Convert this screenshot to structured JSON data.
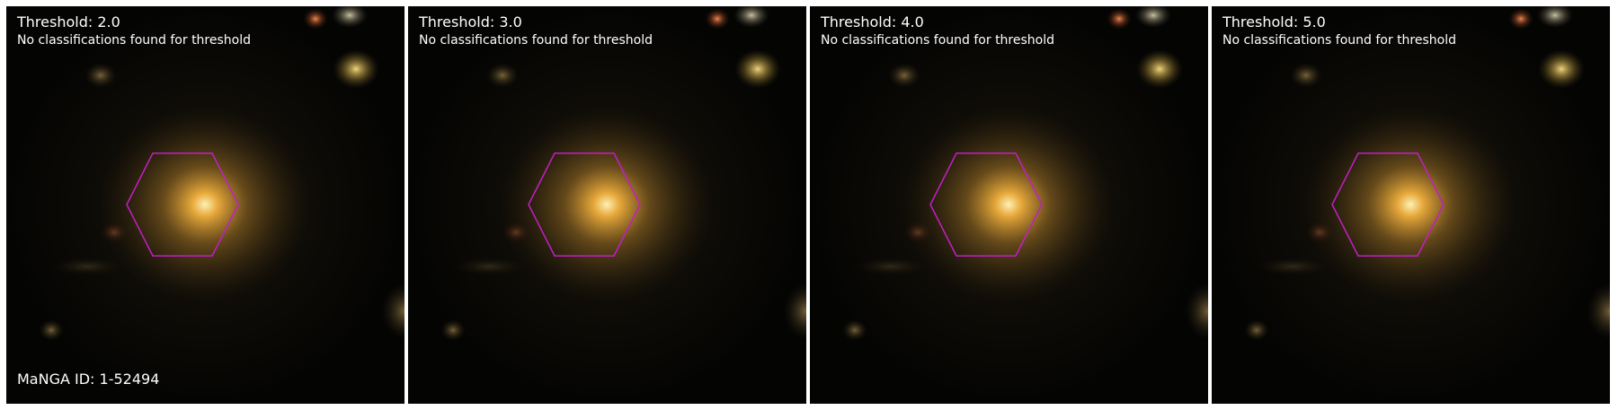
{
  "figure": {
    "manga_id_label": "MaNGA ID: 1-52494",
    "hexagon_color": "#c21fc6",
    "panels": [
      {
        "threshold_label": "Threshold: 2.0",
        "status": "No classifications found for threshold"
      },
      {
        "threshold_label": "Threshold: 3.0",
        "status": "No classifications found for threshold"
      },
      {
        "threshold_label": "Threshold: 4.0",
        "status": "No classifications found for threshold"
      },
      {
        "threshold_label": "Threshold: 5.0",
        "status": "No classifications found for threshold"
      }
    ]
  }
}
